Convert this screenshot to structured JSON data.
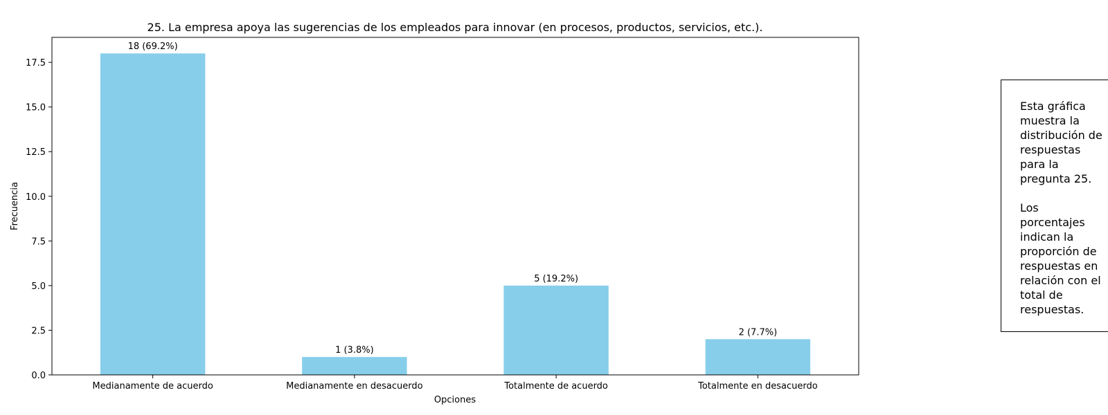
{
  "chart_data": {
    "type": "bar",
    "title": "25. La empresa apoya las sugerencias de los empleados para innovar (en procesos, productos, servicios, etc.).",
    "xlabel": "Opciones",
    "ylabel": "Frecuencia",
    "categories": [
      "Medianamente de acuerdo",
      "Medianamente en desacuerdo",
      "Totalmente de acuerdo",
      "Totalmente en desacuerdo"
    ],
    "values": [
      18,
      1,
      5,
      2
    ],
    "data_labels": [
      "18 (69.2%)",
      "1 (3.8%)",
      "5 (19.2%)",
      "2 (7.7%)"
    ],
    "ylim": [
      0,
      18.9
    ],
    "yticks": [
      0,
      2.5,
      5,
      7.5,
      10,
      12.5,
      15,
      17.5
    ],
    "ytick_labels": [
      "0.0",
      "2.5",
      "5.0",
      "7.5",
      "10.0",
      "12.5",
      "15.0",
      "17.5"
    ],
    "bar_color": "#87CEEB",
    "grid": false,
    "legend": false
  },
  "note": {
    "text": "Esta gráfica\nmuestra la\ndistribución de\nrespuestas\npara la\npregunta 25.\n\nLos\nporcentajes\nindican la\nproporción de\nrespuestas en\nrelación con el\ntotal de\nrespuestas."
  }
}
